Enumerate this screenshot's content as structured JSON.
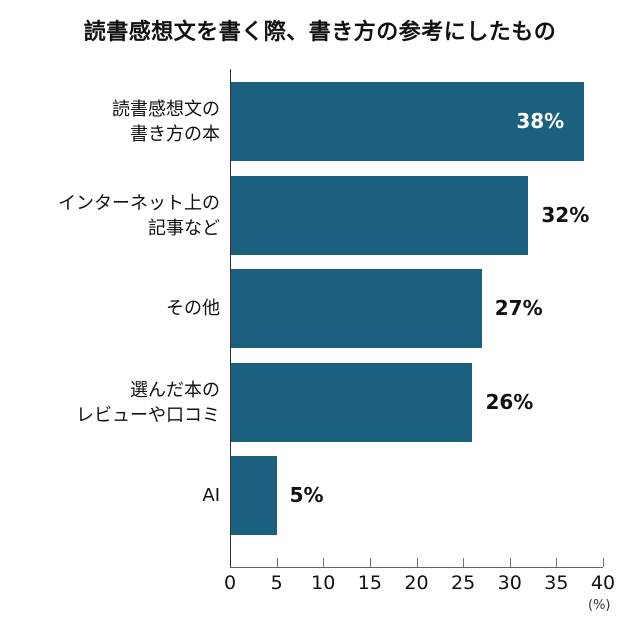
{
  "title": "読書感想文を書く際、書き方の参考にしたもの",
  "colors": {
    "bar": "#1b607f",
    "axis": "#333333",
    "inside_label": "#ffffff",
    "outside_label": "#111111"
  },
  "axis": {
    "ticks": [
      "0",
      "5",
      "10",
      "15",
      "20",
      "25",
      "30",
      "35",
      "40"
    ],
    "unit": "(%)"
  },
  "bars": [
    {
      "label": "読書感想文の\n書き方の本",
      "value": 38,
      "display": "38%"
    },
    {
      "label": "インターネット上の\n記事など",
      "value": 32,
      "display": "32%"
    },
    {
      "label": "その他",
      "value": 27,
      "display": "27%"
    },
    {
      "label": "選んだ本の\nレビューや口コミ",
      "value": 26,
      "display": "26%"
    },
    {
      "label": "AI",
      "value": 5,
      "display": "5%"
    }
  ],
  "chart_data": {
    "type": "bar",
    "orientation": "horizontal",
    "title": "読書感想文を書く際、書き方の参考にしたもの",
    "categories": [
      "読書感想文の書き方の本",
      "インターネット上の記事など",
      "その他",
      "選んだ本のレビューや口コミ",
      "AI"
    ],
    "values": [
      38,
      32,
      27,
      26,
      5
    ],
    "data_labels": [
      "38%",
      "32%",
      "27%",
      "26%",
      "5%"
    ],
    "xlabel": "(%)",
    "ylabel": "",
    "xlim": [
      0,
      40
    ],
    "xticks": [
      0,
      5,
      10,
      15,
      20,
      25,
      30,
      35,
      40
    ],
    "grid": false,
    "legend": null
  }
}
